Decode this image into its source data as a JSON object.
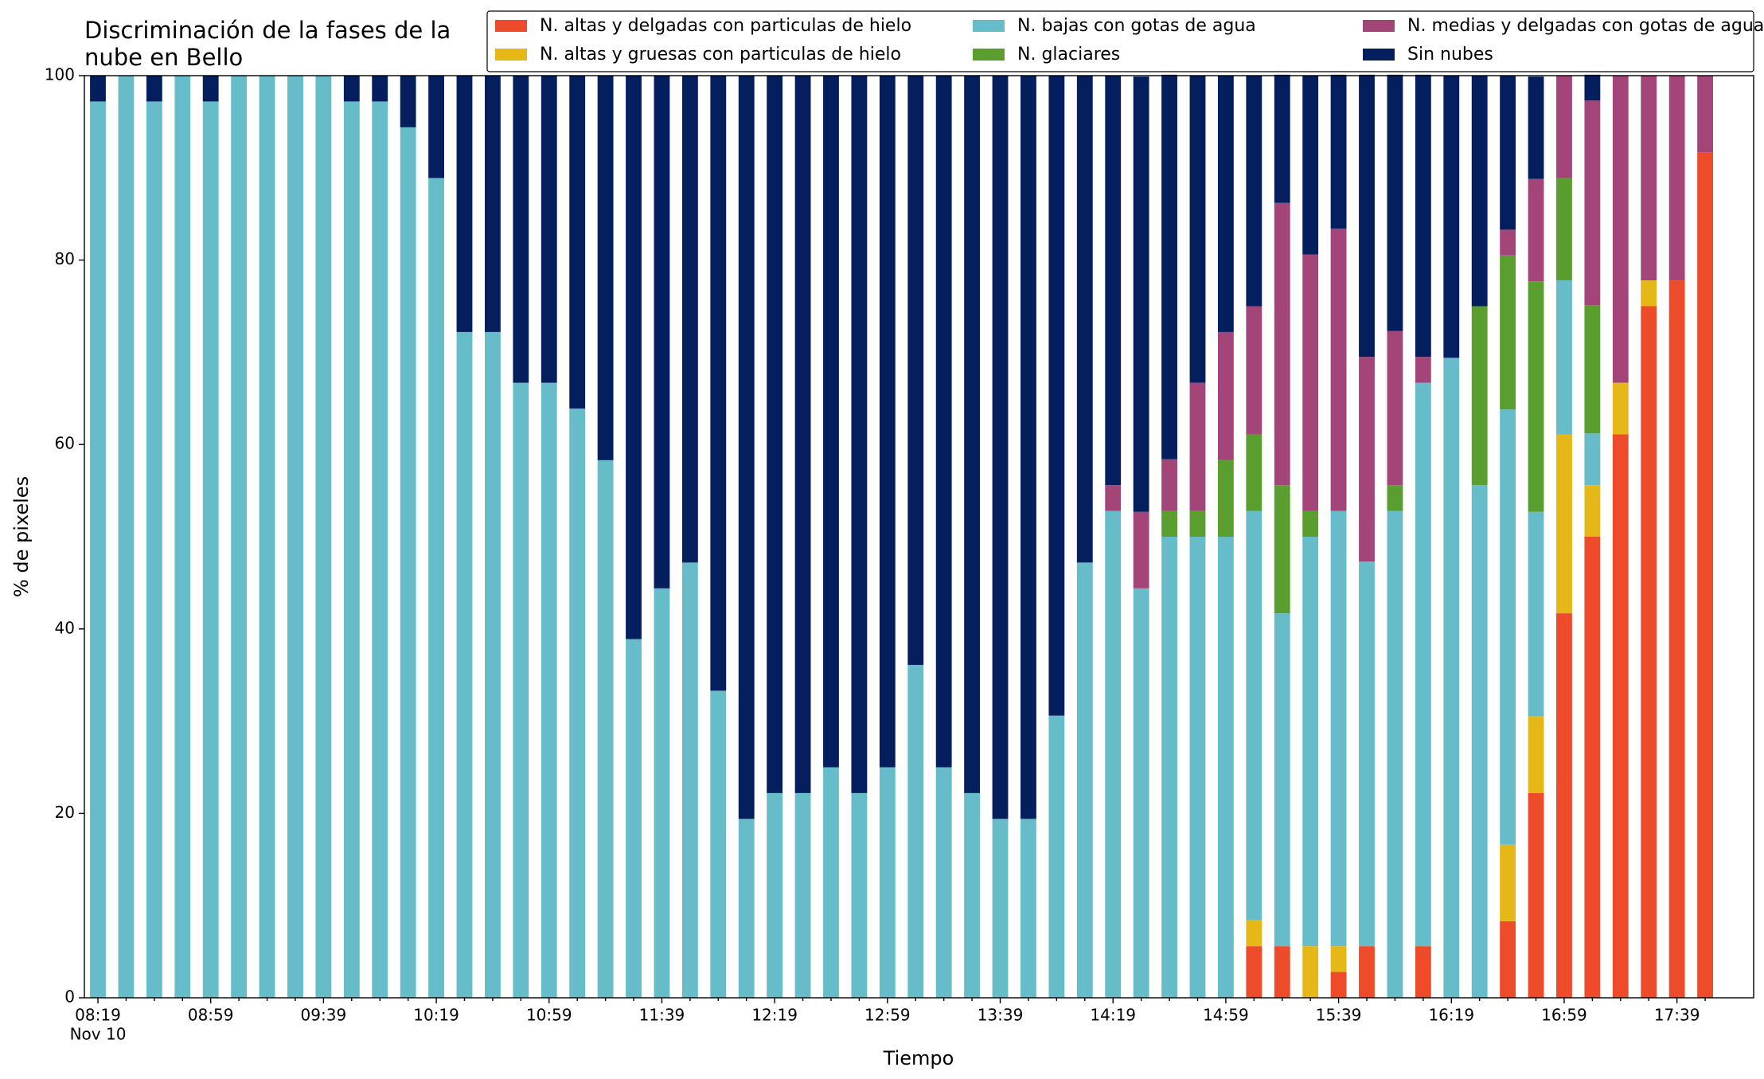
{
  "chart_data": {
    "type": "stacked_bar",
    "title": [
      "Discriminación de la fases de la",
      "nube en Bello"
    ],
    "x_label": "Tiempo",
    "y_label": "% de pixeles",
    "x_sublabel": "Nov 10",
    "categories": [
      "08:19",
      null,
      null,
      null,
      "08:59",
      null,
      null,
      null,
      "09:39",
      null,
      null,
      null,
      "10:19",
      null,
      null,
      null,
      "10:59",
      null,
      null,
      null,
      "11:39",
      null,
      null,
      null,
      "12:19",
      null,
      null,
      null,
      "12:59",
      null,
      null,
      null,
      "13:39",
      null,
      null,
      null,
      "14:19",
      null,
      null,
      null,
      "14:59",
      null,
      null,
      null,
      "15:39",
      null,
      null,
      null,
      "16:19",
      null,
      null,
      null,
      "16:59",
      null,
      null,
      null,
      "17:39",
      null
    ],
    "ylim": [
      0,
      100
    ],
    "yticks": [
      0,
      20,
      40,
      60,
      80,
      100
    ],
    "legend": "top-right",
    "series": [
      {
        "name": "N. altas y delgadas con particulas de hielo",
        "color": "#ee4b2b",
        "values": [
          0,
          0,
          0,
          0,
          0,
          0,
          0,
          0,
          0,
          0,
          0,
          0,
          0,
          0,
          0,
          0,
          0,
          0,
          0,
          0,
          0,
          0,
          0,
          0,
          0,
          0,
          0,
          0,
          0,
          0,
          0,
          0,
          0,
          0,
          0,
          0,
          0,
          0,
          0,
          0,
          0,
          5.6,
          5.6,
          0,
          2.8,
          5.6,
          0,
          5.6,
          0,
          0,
          8.3,
          22.2,
          41.7,
          50,
          61.1,
          75,
          77.8,
          91.7
        ]
      },
      {
        "name": "N. altas y gruesas con particulas de hielo",
        "color": "#e6b817",
        "values": [
          0,
          0,
          0,
          0,
          0,
          0,
          0,
          0,
          0,
          0,
          0,
          0,
          0,
          0,
          0,
          0,
          0,
          0,
          0,
          0,
          0,
          0,
          0,
          0,
          0,
          0,
          0,
          0,
          0,
          0,
          0,
          0,
          0,
          0,
          0,
          0,
          0,
          0,
          0,
          0,
          0,
          2.8,
          0,
          5.6,
          2.8,
          0,
          0,
          0,
          0,
          0,
          8.3,
          8.3,
          19.4,
          5.6,
          5.6,
          2.8,
          0,
          0
        ]
      },
      {
        "name": "N. bajas con gotas de agua",
        "color": "#66bdc9",
        "values": [
          97.2,
          100,
          97.2,
          100,
          97.2,
          100,
          100,
          100,
          100,
          97.2,
          97.2,
          94.4,
          88.9,
          72.2,
          72.2,
          66.7,
          66.7,
          63.9,
          58.3,
          38.9,
          44.4,
          47.2,
          33.3,
          19.4,
          22.2,
          22.2,
          25,
          22.2,
          25,
          36.1,
          25,
          22.2,
          19.4,
          19.4,
          30.6,
          47.2,
          52.8,
          44.4,
          50,
          50,
          50,
          44.4,
          36.1,
          44.4,
          47.2,
          41.7,
          52.8,
          61.1,
          69.4,
          55.6,
          47.2,
          22.2,
          16.7,
          5.6,
          0,
          0,
          0,
          0
        ]
      },
      {
        "name": "N. glaciares",
        "color": "#5a9e2f",
        "values": [
          0,
          0,
          0,
          0,
          0,
          0,
          0,
          0,
          0,
          0,
          0,
          0,
          0,
          0,
          0,
          0,
          0,
          0,
          0,
          0,
          0,
          0,
          0,
          0,
          0,
          0,
          0,
          0,
          0,
          0,
          0,
          0,
          0,
          0,
          0,
          0,
          0,
          0,
          2.8,
          2.8,
          8.3,
          8.3,
          13.9,
          2.8,
          0,
          0,
          2.8,
          0,
          0,
          19.4,
          16.7,
          25,
          11.1,
          13.9,
          0,
          0,
          0,
          0
        ]
      },
      {
        "name": "N. medias y delgadas con gotas de agua",
        "color": "#a4457a",
        "values": [
          0,
          0,
          0,
          0,
          0,
          0,
          0,
          0,
          0,
          0,
          0,
          0,
          0,
          0,
          0,
          0,
          0,
          0,
          0,
          0,
          0,
          0,
          0,
          0,
          0,
          0,
          0,
          0,
          0,
          0,
          0,
          0,
          0,
          0,
          0,
          0,
          2.8,
          8.3,
          5.6,
          13.9,
          13.9,
          13.9,
          30.6,
          27.8,
          30.6,
          22.2,
          16.7,
          2.8,
          0,
          0,
          2.8,
          11.1,
          11.1,
          22.2,
          33.3,
          22.2,
          22.2,
          8.3
        ]
      },
      {
        "name": "Sin nubes",
        "color": "#041e5e",
        "values": [
          2.8,
          0,
          2.8,
          0,
          2.8,
          0,
          0,
          0,
          0,
          2.8,
          2.8,
          5.6,
          11.1,
          27.8,
          27.8,
          33.3,
          33.3,
          36.1,
          41.7,
          61.1,
          55.6,
          52.8,
          66.7,
          80.6,
          77.8,
          77.8,
          75,
          77.8,
          75,
          63.9,
          75,
          77.8,
          80.6,
          80.6,
          69.4,
          52.8,
          44.4,
          47.2,
          41.7,
          33.3,
          27.8,
          25,
          13.9,
          19.4,
          16.7,
          30.6,
          27.8,
          30.6,
          30.6,
          25,
          16.7,
          11.1,
          0,
          2.8,
          0,
          0,
          0,
          0
        ]
      }
    ]
  }
}
